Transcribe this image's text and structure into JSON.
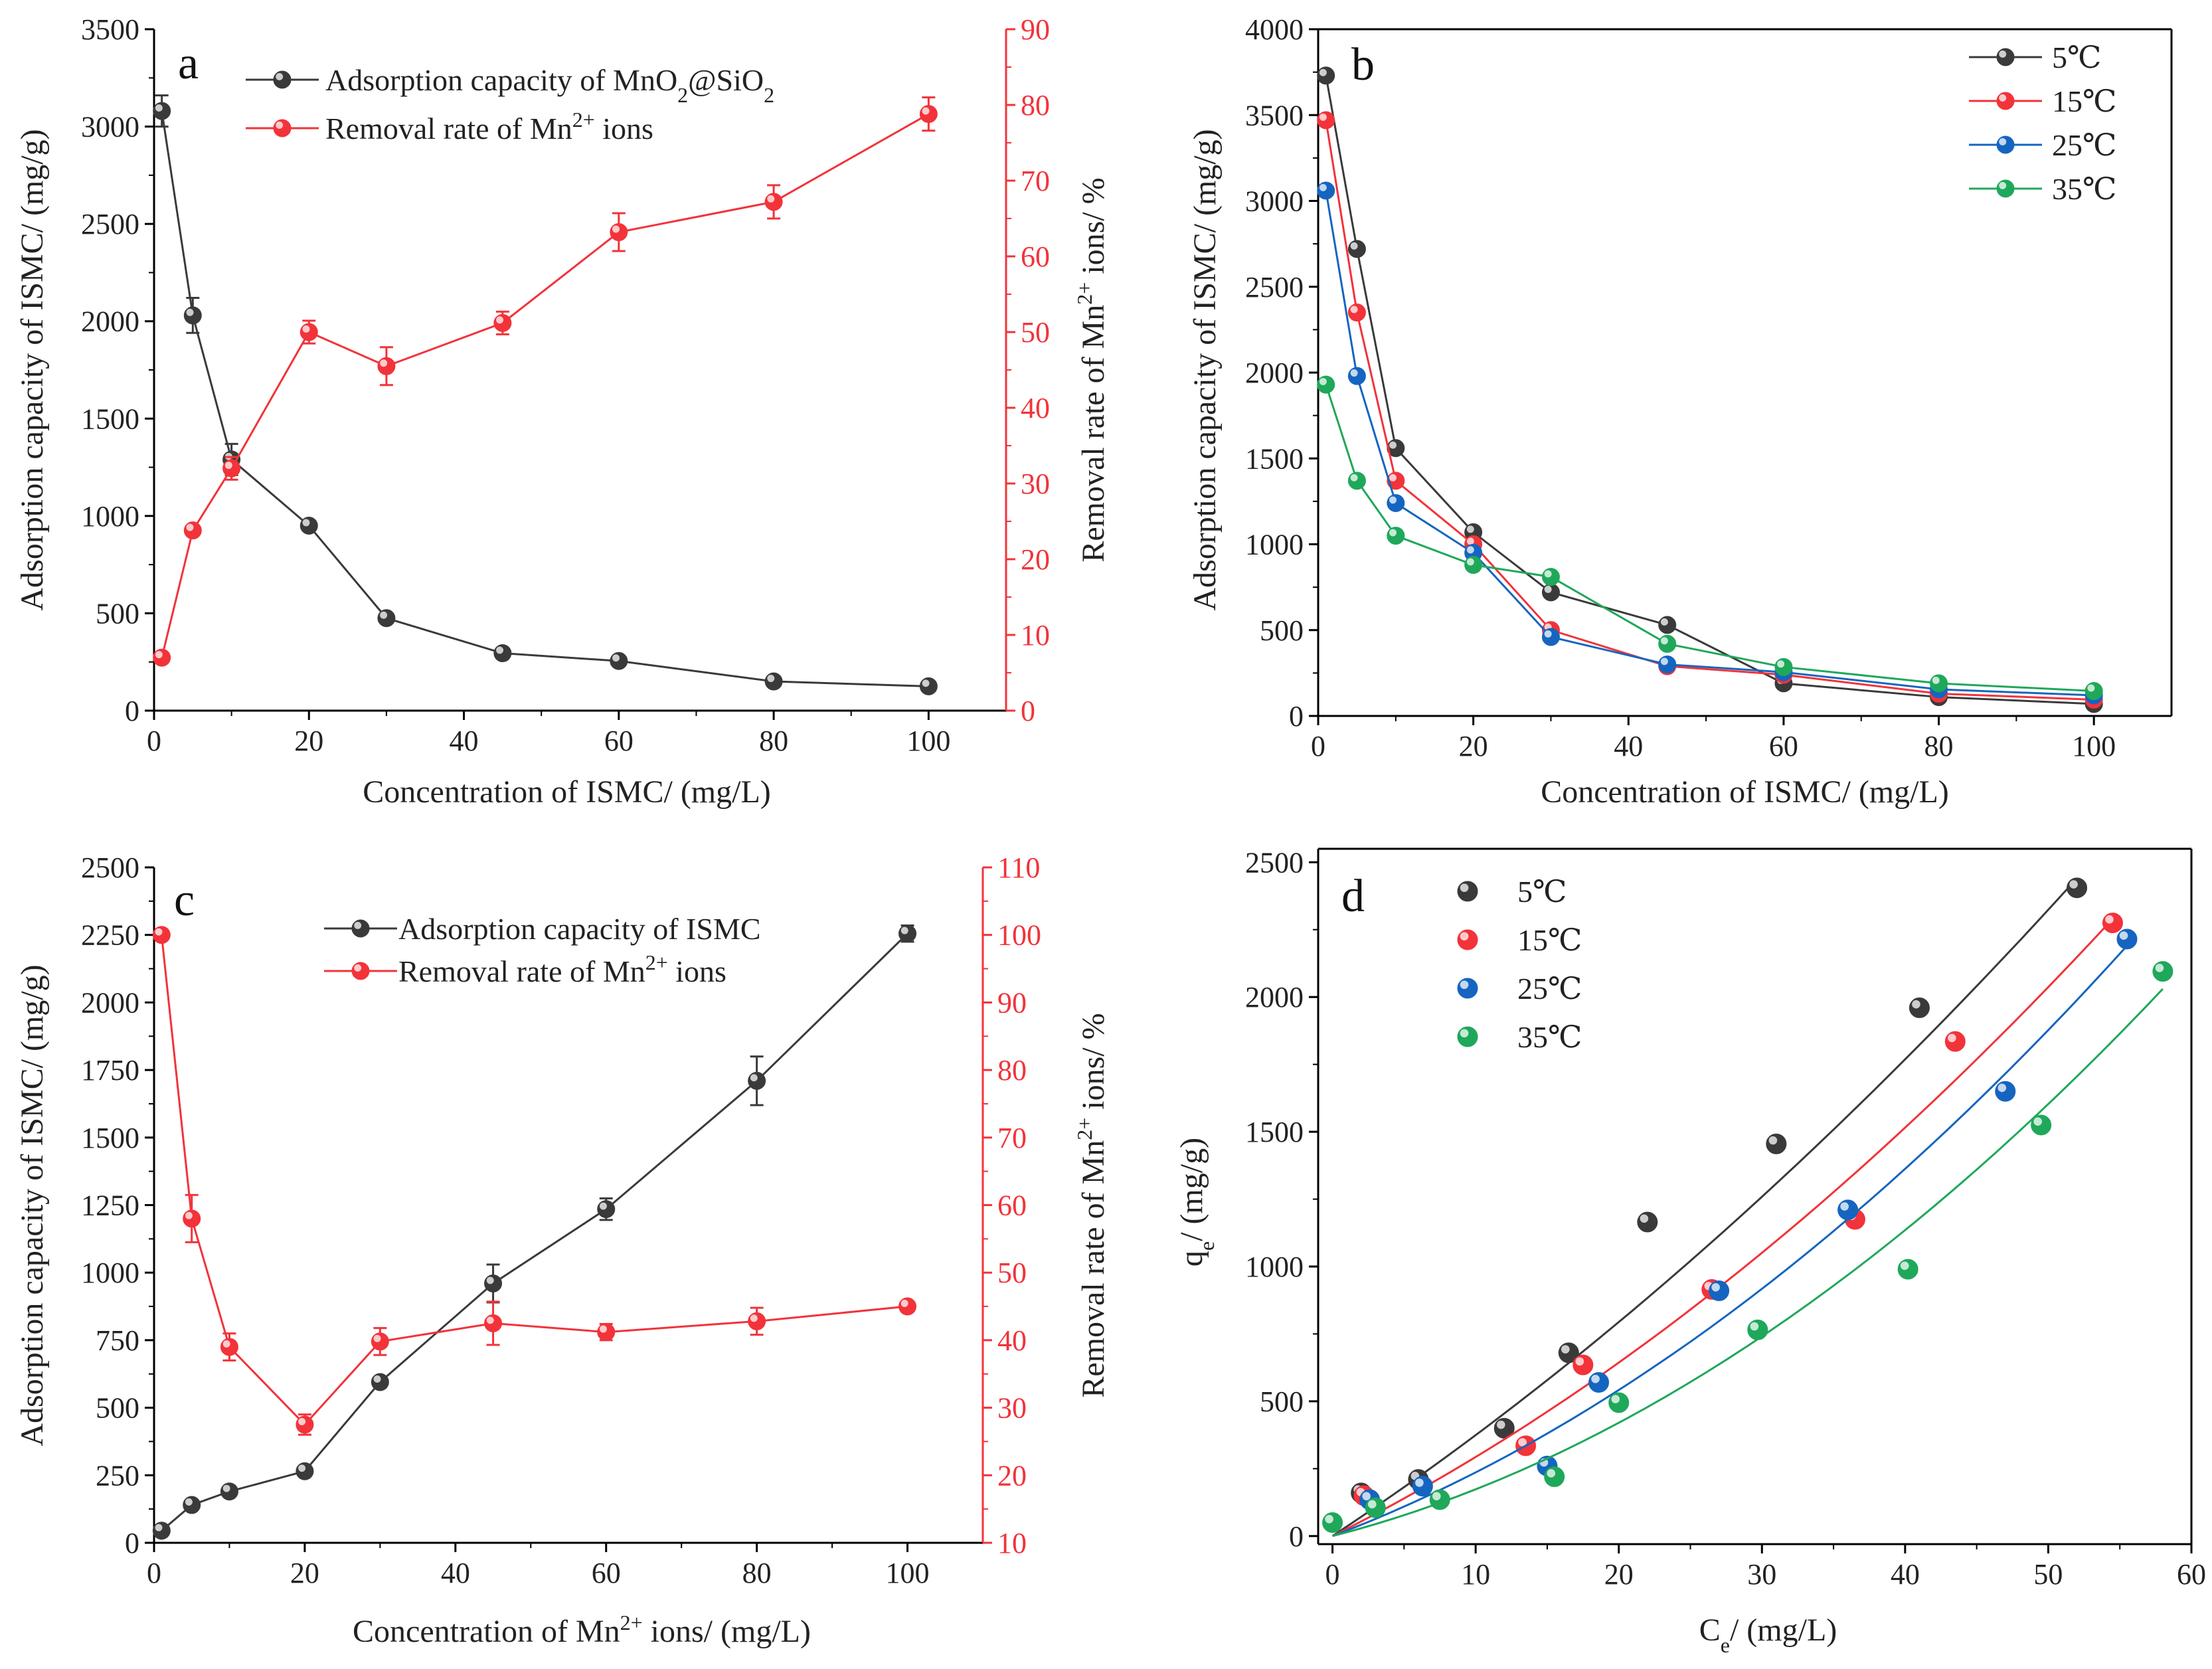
{
  "colors": {
    "black": "#3a3a3a",
    "red": "#f2333a",
    "blue": "#1565c0",
    "green": "#1fa85a",
    "axis": "#000000",
    "right_axis": "#f2333a"
  },
  "chart_data": [
    {
      "panel": "a",
      "type": "line",
      "x": [
        1,
        5,
        10,
        20,
        30,
        45,
        60,
        80,
        100
      ],
      "xlabel": "Concentration of ISMC/ (mg/L)",
      "xlim": [
        0,
        110
      ],
      "xticks": [
        "0",
        "20",
        "40",
        "60",
        "80",
        "100"
      ],
      "ylabel": "Adsorption capacity of ISMC/ (mg/g)",
      "ylim": [
        0,
        3500
      ],
      "yticks": [
        "0",
        "500",
        "1000",
        "1500",
        "2000",
        "2500",
        "3000",
        "3500"
      ],
      "y2label_parts": [
        "Removal rate of Mn",
        "2+",
        " ions/ %"
      ],
      "y2lim": [
        0,
        90
      ],
      "y2ticks": [
        "0",
        "10",
        "20",
        "30",
        "40",
        "50",
        "60",
        "70",
        "80",
        "90"
      ],
      "series": [
        {
          "legend_parts": [
            "Adsorption capacity of MnO",
            "2",
            "@SiO",
            "2"
          ],
          "axis": "left",
          "color_key": "black",
          "values": [
            3080,
            2030,
            1290,
            950,
            475,
            295,
            255,
            150,
            125
          ],
          "errors": [
            80,
            90,
            80,
            0,
            0,
            0,
            0,
            0,
            0
          ]
        },
        {
          "legend_parts": [
            "Removal rate of Mn",
            "2+",
            " ions"
          ],
          "axis": "right",
          "color_key": "red",
          "values": [
            7,
            23.8,
            32,
            50,
            45.5,
            51.2,
            63.2,
            67.2,
            78.8
          ],
          "errors": [
            0,
            0,
            1.5,
            1.5,
            2.5,
            1.5,
            2.5,
            2.2,
            2.2
          ]
        }
      ]
    },
    {
      "panel": "b",
      "type": "line",
      "x": [
        1,
        5,
        10,
        20,
        30,
        45,
        60,
        80,
        100
      ],
      "xlabel": "Concentration of  ISMC/ (mg/L)",
      "xlim": [
        0,
        110
      ],
      "xticks": [
        "0",
        "20",
        "40",
        "60",
        "80",
        "100"
      ],
      "ylabel": "Adsorption capacity of ISMC/ (mg/g)",
      "ylim": [
        0,
        4000
      ],
      "yticks": [
        "0",
        "500",
        "1000",
        "1500",
        "2000",
        "2500",
        "3000",
        "3500",
        "4000"
      ],
      "series": [
        {
          "name": "5℃",
          "color_key": "black",
          "values": [
            3730,
            2720,
            1560,
            1070,
            720,
            530,
            190,
            110,
            70
          ]
        },
        {
          "name": "15℃",
          "color_key": "red",
          "values": [
            3470,
            2350,
            1370,
            1000,
            500,
            290,
            240,
            130,
            95
          ]
        },
        {
          "name": "25℃",
          "color_key": "blue",
          "values": [
            3060,
            1980,
            1240,
            950,
            460,
            300,
            255,
            155,
            120
          ]
        },
        {
          "name": "35℃",
          "color_key": "green",
          "values": [
            1930,
            1370,
            1050,
            880,
            810,
            420,
            285,
            190,
            145
          ]
        }
      ]
    },
    {
      "panel": "c",
      "type": "line",
      "x": [
        1,
        5,
        10,
        20,
        30,
        45,
        60,
        80,
        100
      ],
      "xlabel_parts": [
        "Concentration of Mn",
        "2+",
        " ions/ (mg/L)"
      ],
      "xlim": [
        0,
        110
      ],
      "xticks": [
        "0",
        "20",
        "40",
        "60",
        "80",
        "100"
      ],
      "ylabel": "Adsorption capacity of ISMC/ (mg/g)",
      "ylim": [
        0,
        2500
      ],
      "yticks": [
        "0",
        "250",
        "500",
        "750",
        "1000",
        "1250",
        "1500",
        "1750",
        "2000",
        "2250",
        "2500"
      ],
      "y2label_parts": [
        "Removal rate of Mn",
        "2+",
        " ions/ %"
      ],
      "y2lim": [
        10,
        110
      ],
      "y2ticks": [
        "10",
        "20",
        "30",
        "40",
        "50",
        "60",
        "70",
        "80",
        "90",
        "100",
        "110"
      ],
      "series": [
        {
          "legend": "Adsorption capacity of ISMC",
          "axis": "left",
          "color_key": "black",
          "values": [
            45,
            140,
            190,
            265,
            595,
            960,
            1235,
            1710,
            2255
          ],
          "errors": [
            0,
            0,
            0,
            0,
            0,
            70,
            40,
            90,
            30
          ]
        },
        {
          "legend_parts": [
            "Removal rate of Mn",
            "2+",
            " ions"
          ],
          "axis": "right",
          "color_key": "red",
          "values": [
            100,
            58,
            39,
            27.5,
            39.8,
            42.5,
            41.2,
            42.8,
            45
          ],
          "errors": [
            0,
            3.5,
            2,
            1.5,
            2,
            3.2,
            1.2,
            2,
            0
          ]
        }
      ]
    },
    {
      "panel": "d",
      "type": "scatter",
      "xlabel_parts": [
        "C",
        "e",
        "/ (mg/L)"
      ],
      "xlim": [
        -1,
        60
      ],
      "xticks": [
        "0",
        "10",
        "20",
        "30",
        "40",
        "50",
        "60"
      ],
      "ylabel_parts": [
        "q",
        "e",
        "/ (mg/g)"
      ],
      "ylim": [
        -30,
        2550
      ],
      "yticks": [
        "0",
        "500",
        "1000",
        "1500",
        "2000",
        "2500"
      ],
      "series": [
        {
          "name": "5℃",
          "color_key": "black",
          "x": [
            2.0,
            6.0,
            12.0,
            16.5,
            22.0,
            31.0,
            41.0,
            52.0
          ],
          "y": [
            160,
            210,
            400,
            680,
            1165,
            1455,
            1960,
            2405
          ],
          "fit_x": [
            0,
            52
          ],
          "fit_y": [
            0,
            2440
          ]
        },
        {
          "name": "15℃",
          "color_key": "red",
          "x": [
            2.2,
            13.5,
            17.5,
            26.5,
            36.5,
            43.5,
            54.5
          ],
          "y": [
            150,
            335,
            635,
            915,
            1175,
            1835,
            2275
          ],
          "fit_x": [
            0,
            54.5
          ],
          "fit_y": [
            0,
            2290
          ]
        },
        {
          "name": "25℃",
          "color_key": "blue",
          "x": [
            2.6,
            6.3,
            15.0,
            18.6,
            27.0,
            36.0,
            47.0,
            55.5
          ],
          "y": [
            135,
            185,
            260,
            570,
            910,
            1210,
            1650,
            2215
          ],
          "fit_x": [
            0,
            55.5
          ],
          "fit_y": [
            0,
            2190
          ]
        },
        {
          "name": "35℃",
          "color_key": "green",
          "x": [
            0.0,
            3.0,
            7.5,
            15.5,
            20.0,
            29.7,
            40.2,
            49.5,
            58.0
          ],
          "y": [
            50,
            105,
            135,
            220,
            495,
            765,
            990,
            1525,
            2095
          ],
          "fit_x": [
            0,
            58
          ],
          "fit_y": [
            0,
            2030
          ]
        }
      ]
    }
  ]
}
